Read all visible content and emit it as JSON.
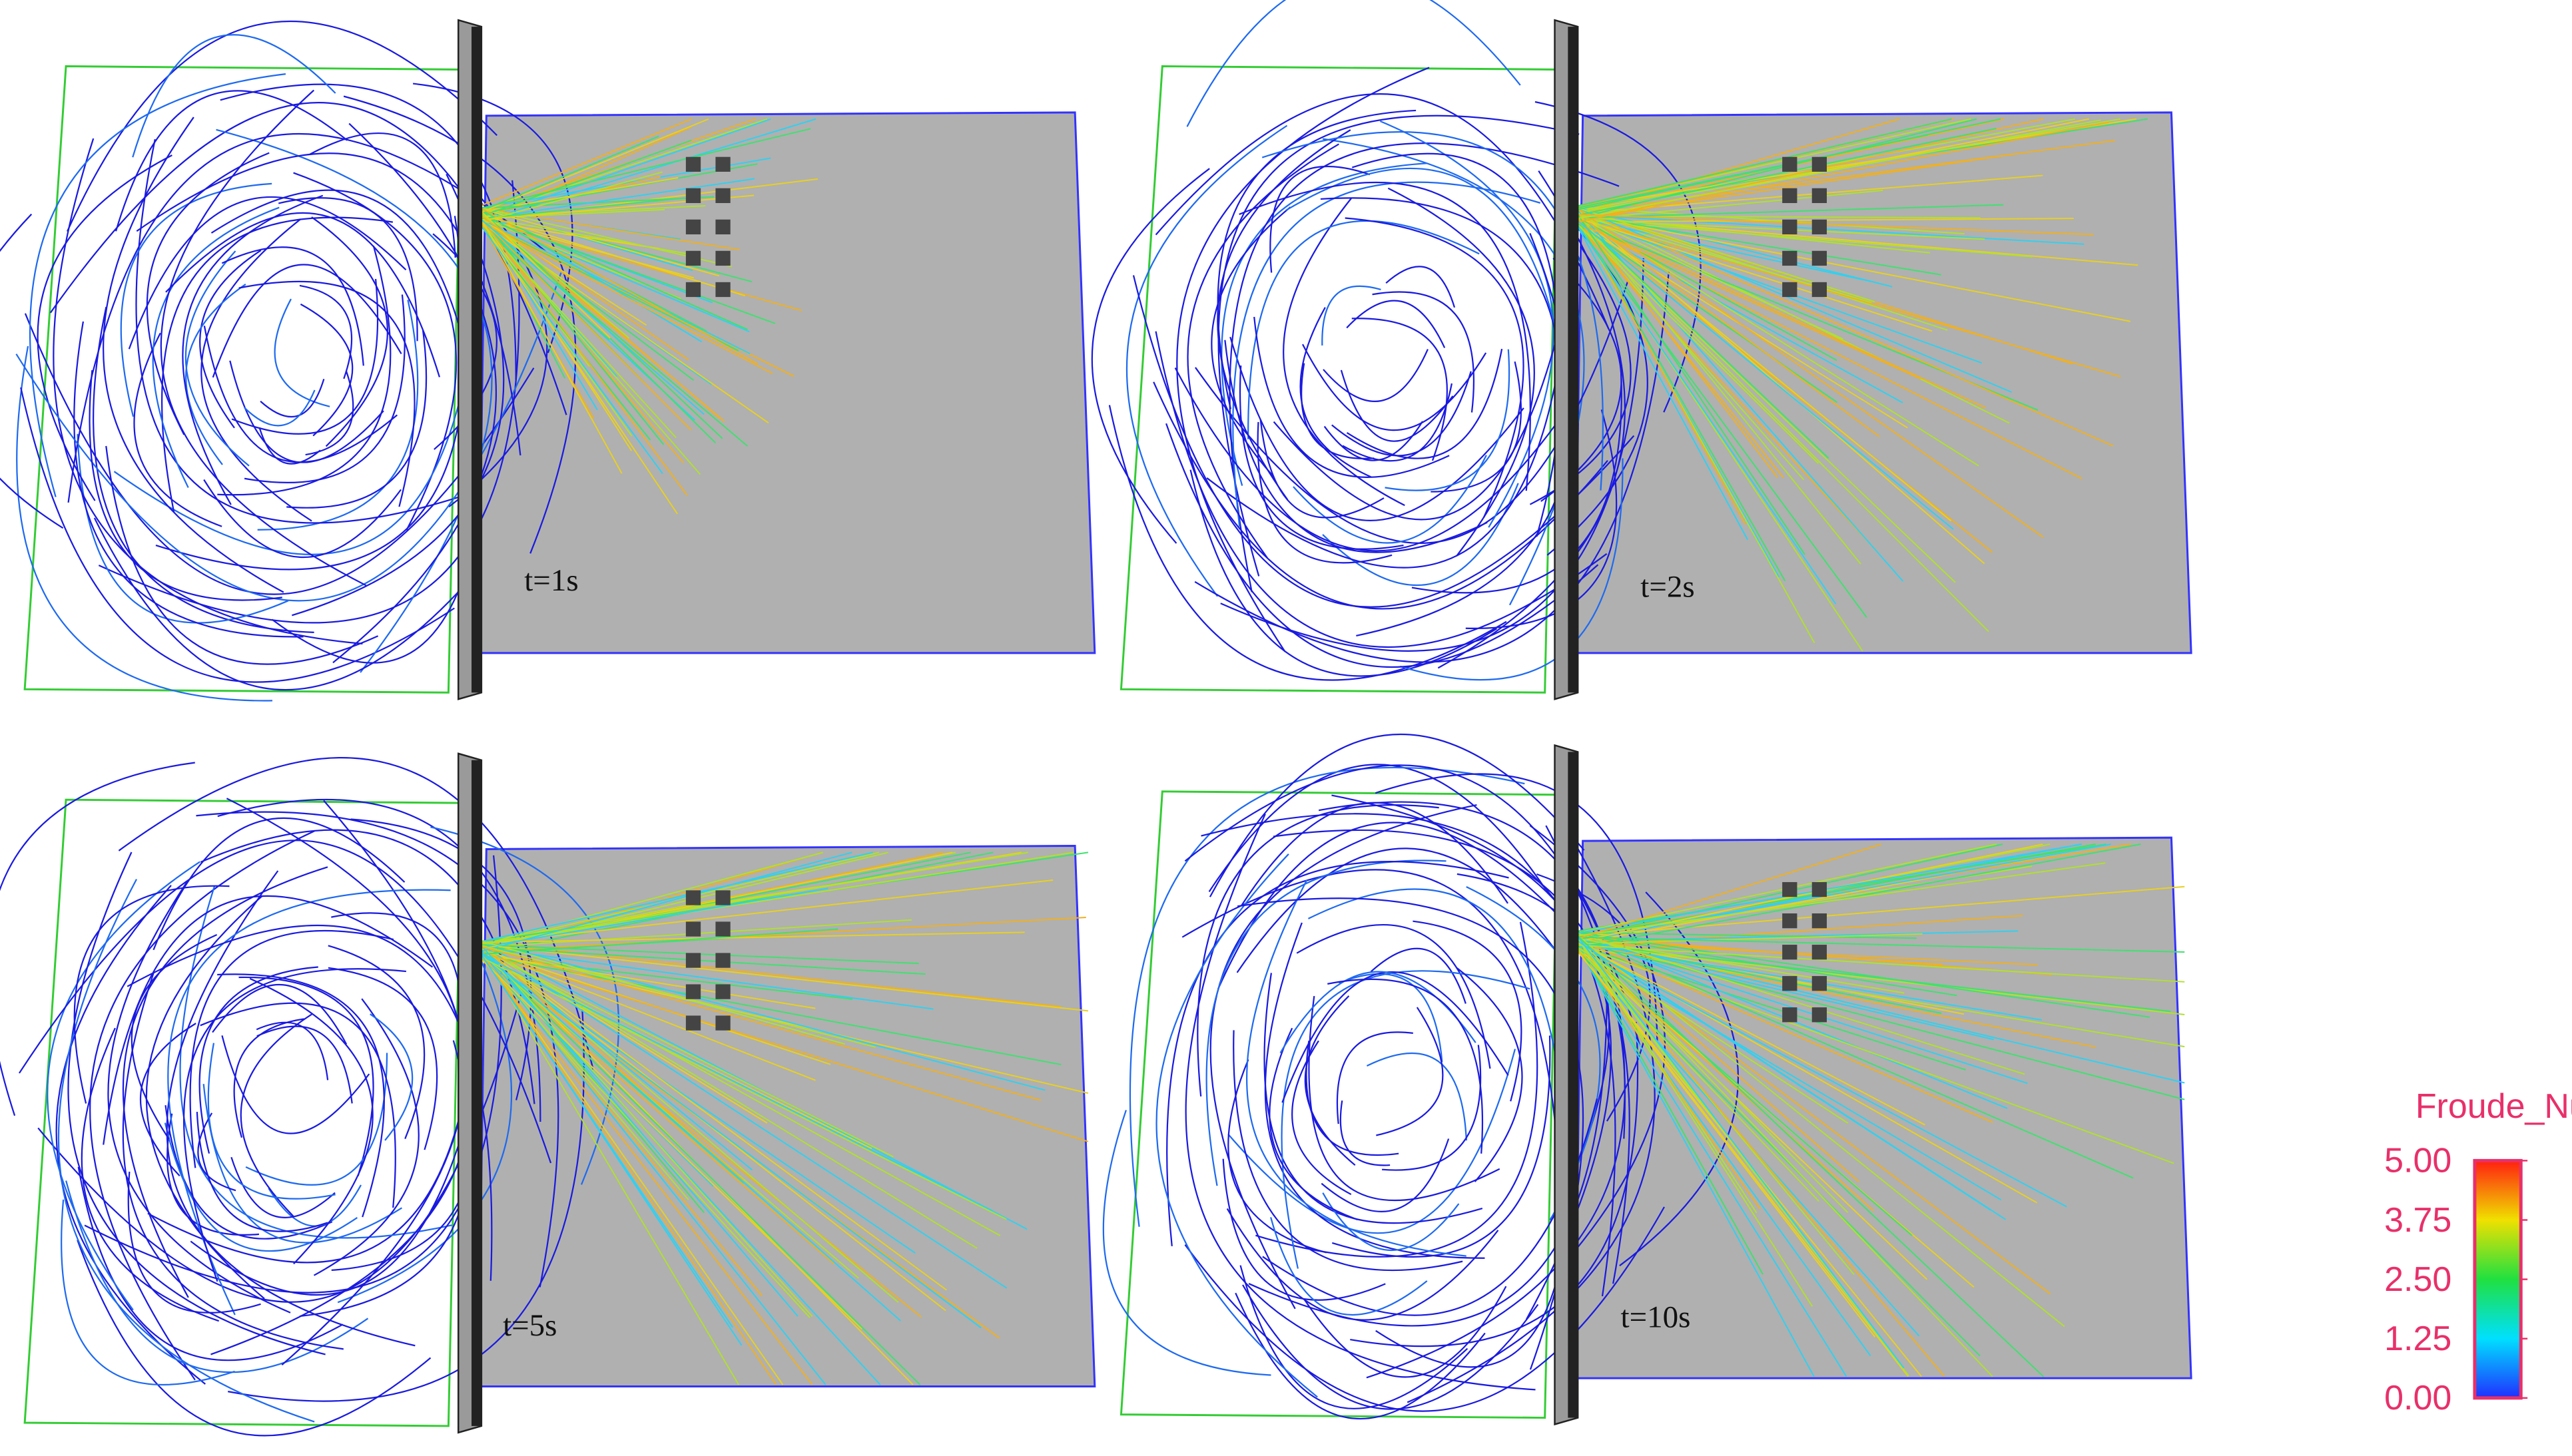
{
  "panels": [
    {
      "label": "t=1s"
    },
    {
      "label": "t=2s"
    },
    {
      "label": "t=5s"
    },
    {
      "label": "t=10s"
    }
  ],
  "colorbar": {
    "title": "Froude_Number",
    "range": [
      0,
      5
    ],
    "ticks": [
      {
        "value": 5,
        "label": "5.00"
      },
      {
        "value": 3.75,
        "label": "3.75"
      },
      {
        "value": 2.5,
        "label": "2.50"
      },
      {
        "value": 1.25,
        "label": "1.25"
      },
      {
        "value": 0,
        "label": "0.00"
      }
    ]
  }
}
